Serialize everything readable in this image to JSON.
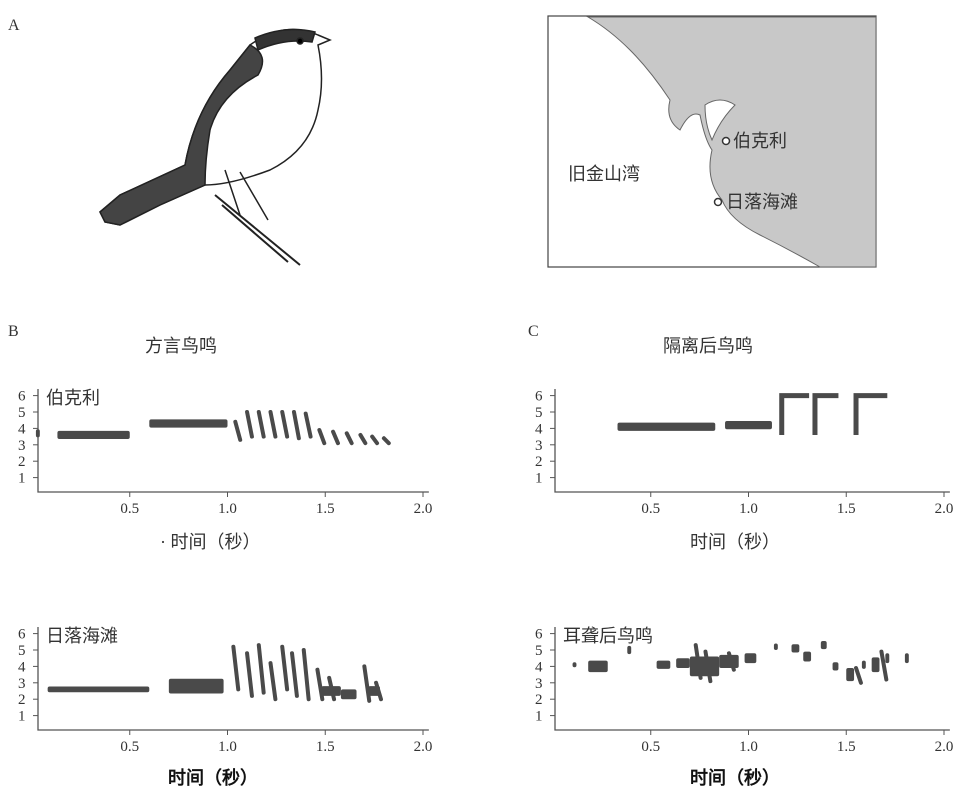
{
  "panel_a": {
    "letter": "A",
    "map_labels": {
      "berkeley": "伯克利",
      "bay": "旧金山湾",
      "beach": "日落海滩"
    }
  },
  "panel_b": {
    "letter": "B",
    "title": "方言鸟鸣",
    "plots": [
      {
        "label": "伯克利",
        "x_label": "· 时间（秒）"
      },
      {
        "label": "日落海滩",
        "x_label": "时间（秒）"
      }
    ]
  },
  "panel_c": {
    "letter": "C",
    "title": "隔离后鸟鸣",
    "plots": [
      {
        "label": "耳聋后鸟鸣",
        "x_label": "时间（秒）"
      },
      {
        "label": "耳聋后鸟鸣",
        "x_label": "时间（秒）"
      }
    ]
  },
  "yticks": [
    6,
    5,
    4,
    3,
    2,
    1
  ],
  "xticks": [
    "0.5",
    "1.0",
    "1.5",
    "2.0"
  ]
}
